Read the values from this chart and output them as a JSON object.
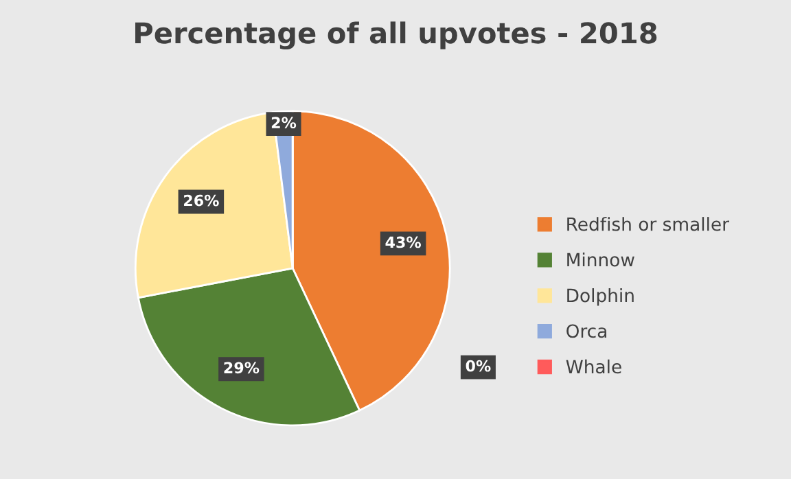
{
  "chart_data": {
    "type": "pie",
    "title": "Percentage of all upvotes - 2018",
    "categories": [
      "Redfish or smaller",
      "Minnow",
      "Dolphin",
      "Orca",
      "Whale"
    ],
    "values": [
      43,
      29,
      26,
      2,
      0
    ],
    "colors": [
      "#ed7d31",
      "#548235",
      "#ffe699",
      "#8faadc",
      "#ff5b5b"
    ],
    "value_labels": [
      "43%",
      "29%",
      "26%",
      "2%",
      "0%"
    ],
    "legend": "right"
  }
}
